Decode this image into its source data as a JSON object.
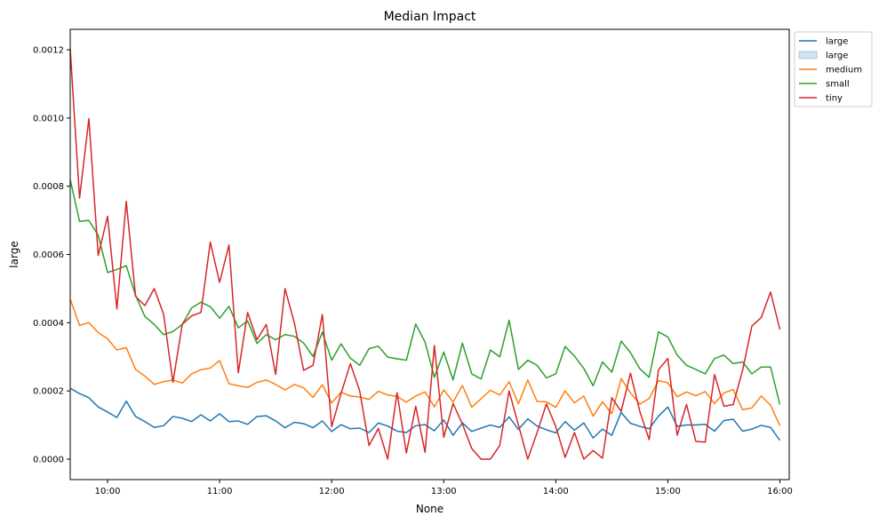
{
  "chart_data": {
    "type": "line",
    "title": "Median Impact",
    "xlabel": "None",
    "ylabel": "large",
    "x_ticks": [
      "10:00",
      "11:00",
      "12:00",
      "13:00",
      "14:00",
      "15:00",
      "16:00"
    ],
    "y_ticks": [
      "0.0000",
      "0.0002",
      "0.0004",
      "0.0006",
      "0.0008",
      "0.0010",
      "0.0012"
    ],
    "xlim": [
      "09:40",
      "16:05"
    ],
    "ylim": [
      -6e-05,
      0.00126
    ],
    "x_start": "09:40",
    "x_step_minutes": 5,
    "grid": false,
    "legend": {
      "placement": "outside-top-right",
      "entries": [
        {
          "label": "large",
          "kind": "line",
          "color": "#1f77b4"
        },
        {
          "label": "large",
          "kind": "band",
          "color": "#1f77b4"
        },
        {
          "label": "medium",
          "kind": "line",
          "color": "#ff7f0e"
        },
        {
          "label": "small",
          "kind": "line",
          "color": "#2ca02c"
        },
        {
          "label": "tiny",
          "kind": "line",
          "color": "#d62728"
        }
      ]
    },
    "series": [
      {
        "name": "large",
        "color": "#1f77b4",
        "values": [
          0.000208,
          0.000192,
          0.00018,
          0.000153,
          0.000138,
          0.000122,
          0.00017,
          0.000125,
          0.00011,
          9.3e-05,
          9.8e-05,
          0.000125,
          0.00012,
          0.00011,
          0.00013,
          0.000112,
          0.000133,
          0.00011,
          0.000112,
          0.000102,
          0.000125,
          0.000127,
          0.000112,
          9.2e-05,
          0.000108,
          0.000104,
          9.2e-05,
          0.000112,
          8.1e-05,
          0.000101,
          8.9e-05,
          9.1e-05,
          7.8e-05,
          0.000106,
          9.7e-05,
          8.2e-05,
          7.8e-05,
          9.8e-05,
          0.000101,
          8.3e-05,
          0.000115,
          7e-05,
          0.000106,
          8.1e-05,
          9.1e-05,
          0.0001,
          9.3e-05,
          0.000124,
          8.7e-05,
          0.000118,
          9.7e-05,
          8.6e-05,
          7.7e-05,
          0.00011,
          8.5e-05,
          0.000106,
          6.2e-05,
          8.8e-05,
          7e-05,
          0.000137,
          0.000105,
          9.6e-05,
          8.9e-05,
          0.000126,
          0.000153,
          9.6e-05,
          0.0001,
          0.0001,
          0.000102,
          8.2e-05,
          0.000113,
          0.000117,
          8.2e-05,
          8.8e-05,
          9.9e-05,
          9.3e-05,
          5.5e-05
        ]
      },
      {
        "name": "medium",
        "color": "#ff7f0e",
        "values": [
          0.000469,
          0.000392,
          0.0004,
          0.000371,
          0.000353,
          0.00032,
          0.000327,
          0.000263,
          0.000243,
          0.000219,
          0.000227,
          0.000232,
          0.000223,
          0.00025,
          0.000262,
          0.000267,
          0.000289,
          0.000221,
          0.000215,
          0.00021,
          0.000225,
          0.000232,
          0.000219,
          0.000203,
          0.000219,
          0.000209,
          0.000181,
          0.000218,
          0.000165,
          0.000196,
          0.000185,
          0.000182,
          0.000175,
          0.000199,
          0.000188,
          0.000184,
          0.000167,
          0.000185,
          0.000197,
          0.000153,
          0.000203,
          0.000167,
          0.000216,
          0.000152,
          0.000177,
          0.000202,
          0.000188,
          0.000227,
          0.000162,
          0.000232,
          0.000169,
          0.000168,
          0.000152,
          0.0002,
          0.000165,
          0.000185,
          0.000126,
          0.000168,
          0.000133,
          0.000236,
          0.000194,
          0.000161,
          0.000178,
          0.00023,
          0.000224,
          0.000183,
          0.000197,
          0.000186,
          0.000198,
          0.000163,
          0.000194,
          0.000204,
          0.000145,
          0.00015,
          0.000185,
          0.000158,
          9.8e-05
        ]
      },
      {
        "name": "small",
        "color": "#2ca02c",
        "values": [
          0.000819,
          0.000697,
          0.0007,
          0.000656,
          0.000547,
          0.000556,
          0.000567,
          0.00048,
          0.000418,
          0.000395,
          0.000365,
          0.000374,
          0.000395,
          0.000443,
          0.00046,
          0.000447,
          0.000413,
          0.000448,
          0.000385,
          0.000405,
          0.000339,
          0.000365,
          0.00035,
          0.000365,
          0.00036,
          0.00034,
          0.000301,
          0.000372,
          0.00029,
          0.000338,
          0.000296,
          0.000275,
          0.000324,
          0.000331,
          0.000299,
          0.000294,
          0.00029,
          0.000396,
          0.000343,
          0.00024,
          0.000314,
          0.000232,
          0.00034,
          0.00025,
          0.000235,
          0.00032,
          0.0003,
          0.000407,
          0.000263,
          0.00029,
          0.000275,
          0.000238,
          0.00025,
          0.00033,
          0.000302,
          0.000266,
          0.000215,
          0.000285,
          0.000255,
          0.000346,
          0.000312,
          0.000265,
          0.00024,
          0.000373,
          0.000358,
          0.000305,
          0.000275,
          0.000263,
          0.00025,
          0.000295,
          0.000305,
          0.00028,
          0.000285,
          0.00025,
          0.00027,
          0.00027,
          0.00016
        ]
      },
      {
        "name": "tiny",
        "color": "#d62728",
        "values": [
          0.001202,
          0.000765,
          0.000998,
          0.000597,
          0.000712,
          0.00044,
          0.000756,
          0.000477,
          0.00045,
          0.0005,
          0.000425,
          0.000225,
          0.000395,
          0.00042,
          0.00043,
          0.000636,
          0.000518,
          0.000628,
          0.000253,
          0.00043,
          0.00035,
          0.000395,
          0.000248,
          0.0005,
          0.0004,
          0.00026,
          0.000275,
          0.000424,
          9.5e-05,
          0.000192,
          0.00028,
          0.0002,
          4e-05,
          9e-05,
          0.0,
          0.000195,
          1.8e-05,
          0.000155,
          2e-05,
          0.000333,
          6.4e-05,
          0.000163,
          0.000103,
          3.1e-05,
          0.0,
          0.0,
          4e-05,
          0.0002,
          0.0001,
          0.0,
          7.8e-05,
          0.000162,
          9.5e-05,
          5e-06,
          7.8e-05,
          0.0,
          2.5e-05,
          3e-06,
          0.00018,
          0.00014,
          0.000252,
          0.00014,
          5.7e-05,
          0.000262,
          0.000295,
          7e-05,
          0.00016,
          5.2e-05,
          5e-05,
          0.000248,
          0.000155,
          0.00016,
          0.00026,
          0.00039,
          0.000415,
          0.00049,
          0.00038
        ]
      }
    ]
  }
}
